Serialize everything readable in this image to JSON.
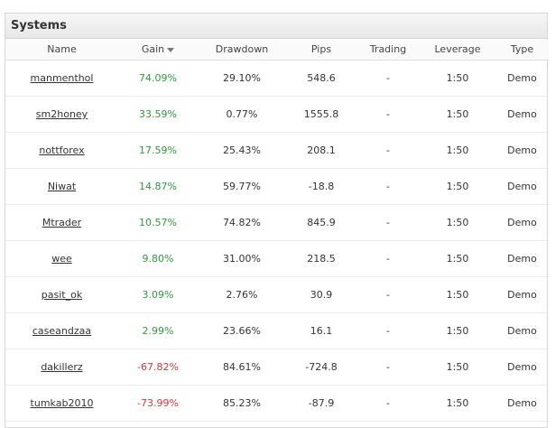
{
  "panel": {
    "title": "Systems"
  },
  "table": {
    "columns": [
      "Name",
      "Gain",
      "Drawdown",
      "Pips",
      "Trading",
      "Leverage",
      "Type"
    ],
    "rows": [
      [
        "manmenthol",
        "74.09%",
        "29.10%",
        "548.6",
        "-",
        "1:50",
        "Demo"
      ],
      [
        "sm2honey",
        "33.59%",
        "0.77%",
        "1555.8",
        "-",
        "1:50",
        "Demo"
      ],
      [
        "nottforex",
        "17.59%",
        "25.43%",
        "208.1",
        "-",
        "1:50",
        "Demo"
      ],
      [
        "Niwat",
        "14.87%",
        "59.77%",
        "-18.8",
        "-",
        "1:50",
        "Demo"
      ],
      [
        "Mtrader",
        "10.57%",
        "74.82%",
        "845.9",
        "-",
        "1:50",
        "Demo"
      ],
      [
        "wee",
        "9.80%",
        "31.00%",
        "218.5",
        "-",
        "1:50",
        "Demo"
      ],
      [
        "pasit_ok",
        "3.09%",
        "2.76%",
        "30.9",
        "-",
        "1:50",
        "Demo"
      ],
      [
        "caseandzaa",
        "2.99%",
        "23.66%",
        "16.1",
        "-",
        "1:50",
        "Demo"
      ],
      [
        "dakillerz",
        "-67.82%",
        "84.61%",
        "-724.8",
        "-",
        "1:50",
        "Demo"
      ],
      [
        "tumkab2010",
        "-73.99%",
        "85.23%",
        "-87.9",
        "-",
        "1:50",
        "Demo"
      ]
    ]
  }
}
